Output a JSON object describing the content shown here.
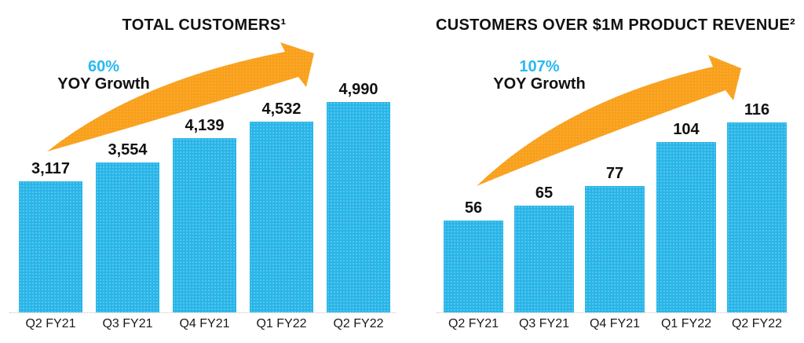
{
  "colors": {
    "bar_blue": "#29b5e8",
    "accent_cyan": "#29b9ef",
    "arrow_orange": "#f9a01b",
    "text_dark": "#111111",
    "baseline_gray": "#c4c4c4"
  },
  "chart_data": [
    {
      "type": "bar",
      "title": "TOTAL CUSTOMERS¹",
      "growth": {
        "pct": "60%",
        "label": "YOY Growth"
      },
      "categories": [
        "Q2 FY21",
        "Q3 FY21",
        "Q4 FY21",
        "Q1 FY22",
        "Q2 FY22"
      ],
      "values": [
        3117,
        3554,
        4139,
        4532,
        4990
      ],
      "value_labels": [
        "3,117",
        "3,554",
        "4,139",
        "4,532",
        "4,990"
      ],
      "xlabel": "",
      "ylabel": "",
      "ylim": [
        0,
        5000
      ],
      "grid": false,
      "legend": "none"
    },
    {
      "type": "bar",
      "title": "CUSTOMERS OVER $1M PRODUCT REVENUE²",
      "growth": {
        "pct": "107%",
        "label": "YOY Growth"
      },
      "categories": [
        "Q2 FY21",
        "Q3 FY21",
        "Q4 FY21",
        "Q1 FY22",
        "Q2 FY22"
      ],
      "values": [
        56,
        65,
        77,
        104,
        116
      ],
      "value_labels": [
        "56",
        "65",
        "77",
        "104",
        "116"
      ],
      "xlabel": "",
      "ylabel": "",
      "ylim": [
        0,
        120
      ],
      "grid": false,
      "legend": "none"
    }
  ]
}
